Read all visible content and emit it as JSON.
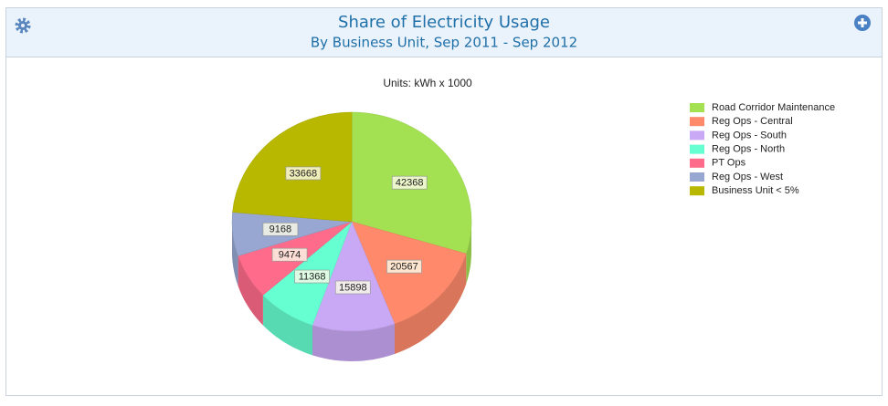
{
  "chart_data": {
    "type": "pie3d",
    "title": "Share of Electricity Usage",
    "subtitle": "By Business Unit, Sep 2011 - Sep 2012",
    "units_label": "Units: kWh x 1000",
    "categories": [
      "Road Corridor Maintenance",
      "Reg Ops - Central",
      "Reg Ops - South",
      "Reg Ops - North",
      "PT Ops",
      "Reg Ops - West",
      "Business Unit < 5%"
    ],
    "values": [
      42368,
      20567,
      15898,
      11368,
      9474,
      9168,
      33668
    ],
    "colors": [
      "#a3e052",
      "#ff8a6b",
      "#c9a8f5",
      "#66ffd1",
      "#ff6b8a",
      "#97a7d1",
      "#b8b800"
    ],
    "legend": "right"
  }
}
